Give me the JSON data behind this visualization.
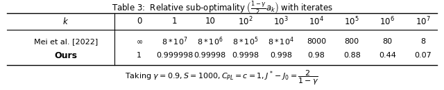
{
  "title": "Table 3:  Relative sub-optimality $\\left(\\frac{1-\\gamma}{2}a_k\\right)$ with iterates",
  "col_headers_k": "$k$",
  "col_headers": [
    "0",
    "1",
    "10",
    "$10^2$",
    "$10^3$",
    "$10^4$",
    "$10^5$",
    "$10^6$",
    "$10^7$"
  ],
  "row1_label": "Mei et al. [2022]",
  "row1_values": [
    "$\\infty$",
    "$8*10^7$",
    "$8*10^6$",
    "$8*10^5$",
    "$8*10^4$",
    "8000",
    "800",
    "80",
    "8"
  ],
  "row2_label": "Ours",
  "row2_values": [
    "1",
    "0.999998",
    "0.99998",
    "0.9998",
    "0.998",
    "0.98",
    "0.88",
    "0.44",
    "0.07"
  ],
  "footnote": "Taking $\\gamma=0.9, S=1000, C_{PL}=c=1, J^*-J_0=\\dfrac{2}{1-\\gamma}$",
  "figsize": [
    6.4,
    1.3
  ],
  "dpi": 100
}
